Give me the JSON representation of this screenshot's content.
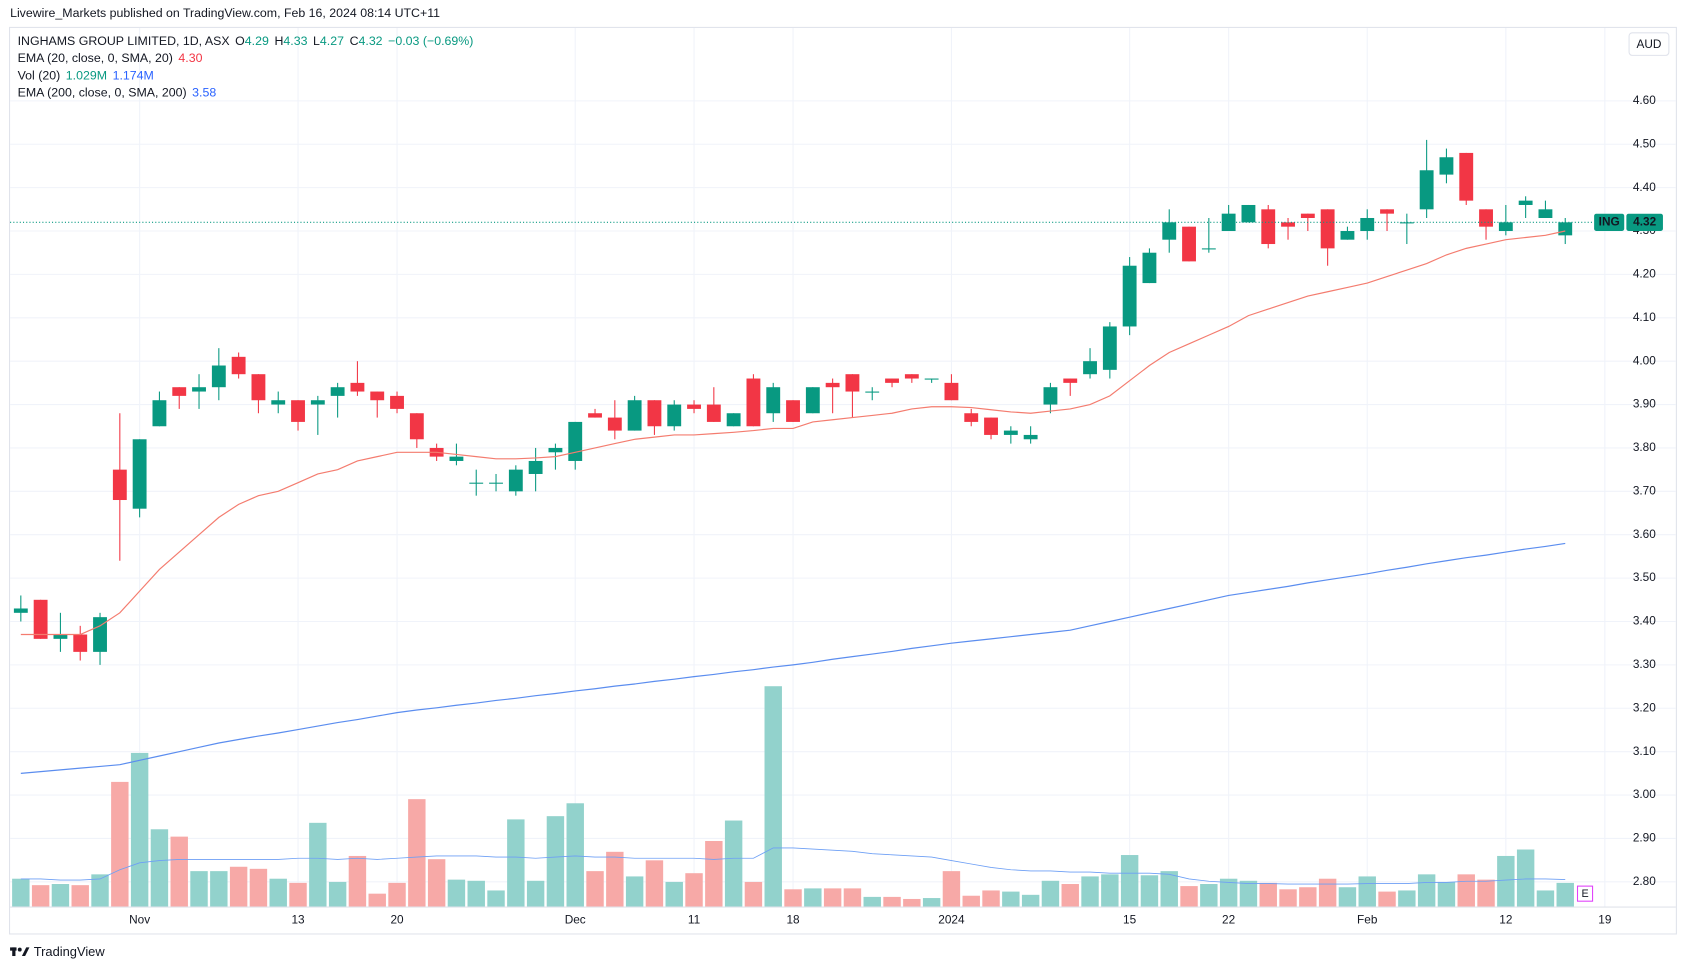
{
  "header": {
    "text": "Livewire_Markets published on TradingView.com, Feb 16, 2024 08:14 UTC+11"
  },
  "footer": {
    "brand": "TradingView"
  },
  "chart_data": {
    "type": "candlestick",
    "legend": {
      "symbol": "INGHAMS GROUP LIMITED, 1D, ASX",
      "ohlc_labels": [
        "O",
        "H",
        "L",
        "C"
      ],
      "change": "−0.03 (−0.69%)"
    },
    "currency": "AUD",
    "symbol_tag": "ING",
    "earnings_marker": "E",
    "up_color": "#089981",
    "down_color": "#f23645",
    "grid": true,
    "xlim": [
      -0.543,
      79.35
    ],
    "xticks": [
      {
        "value": 6,
        "label": "Nov"
      },
      {
        "value": 14,
        "label": "13"
      },
      {
        "value": 19,
        "label": "20"
      },
      {
        "value": 28,
        "label": "Dec"
      },
      {
        "value": 34,
        "label": "11"
      },
      {
        "value": 39,
        "label": "18"
      },
      {
        "value": 47,
        "label": "2024"
      },
      {
        "value": 56,
        "label": "15"
      },
      {
        "value": 61,
        "label": "22"
      },
      {
        "value": 68,
        "label": "Feb"
      },
      {
        "value": 75,
        "label": "12"
      },
      {
        "value": 80,
        "label": "19"
      }
    ],
    "ylim": [
      2.743,
      4.768
    ],
    "yticks": [
      {
        "value": 2.8,
        "label": "2.80"
      },
      {
        "value": 2.9,
        "label": "2.90"
      },
      {
        "value": 3.0,
        "label": "3.00"
      },
      {
        "value": 3.1,
        "label": "3.10"
      },
      {
        "value": 3.2,
        "label": "3.20"
      },
      {
        "value": 3.3,
        "label": "3.30"
      },
      {
        "value": 3.4,
        "label": "3.40"
      },
      {
        "value": 3.5,
        "label": "3.50"
      },
      {
        "value": 3.6,
        "label": "3.60"
      },
      {
        "value": 3.7,
        "label": "3.70"
      },
      {
        "value": 3.8,
        "label": "3.80"
      },
      {
        "value": 3.9,
        "label": "3.90"
      },
      {
        "value": 4.0,
        "label": "4.00"
      },
      {
        "value": 4.1,
        "label": "4.10"
      },
      {
        "value": 4.2,
        "label": "4.20"
      },
      {
        "value": 4.3,
        "label": "4.30"
      },
      {
        "value": 4.4,
        "label": "4.40"
      },
      {
        "value": 4.5,
        "label": "4.50"
      },
      {
        "value": 4.6,
        "label": "4.60"
      }
    ],
    "open": [
      3.42,
      3.45,
      3.36,
      3.37,
      3.33,
      3.75,
      3.66,
      3.85,
      3.94,
      3.93,
      3.94,
      4.01,
      3.97,
      3.9,
      3.91,
      3.9,
      3.92,
      3.95,
      3.93,
      3.92,
      3.88,
      3.8,
      3.77,
      3.72,
      3.72,
      3.7,
      3.74,
      3.79,
      3.77,
      3.88,
      3.87,
      3.84,
      3.91,
      3.85,
      3.9,
      3.9,
      3.85,
      3.96,
      3.88,
      3.91,
      3.88,
      3.95,
      3.97,
      3.93,
      3.96,
      3.97,
      3.96,
      3.95,
      3.88,
      3.87,
      3.83,
      3.82,
      3.9,
      3.96,
      3.97,
      3.98,
      4.08,
      4.18,
      4.28,
      4.31,
      4.26,
      4.3,
      4.32,
      4.35,
      4.32,
      4.34,
      4.35,
      4.28,
      4.3,
      4.35,
      4.32,
      4.35,
      4.43,
      4.48,
      4.35,
      4.3,
      4.36,
      4.33,
      4.29
    ],
    "high": [
      3.46,
      3.45,
      3.42,
      3.39,
      3.42,
      3.88,
      3.82,
      3.93,
      3.94,
      3.97,
      4.03,
      4.02,
      3.97,
      3.93,
      3.91,
      3.92,
      3.95,
      4.0,
      3.93,
      3.93,
      3.88,
      3.81,
      3.81,
      3.75,
      3.74,
      3.76,
      3.8,
      3.81,
      3.86,
      3.89,
      3.91,
      3.92,
      3.91,
      3.91,
      3.91,
      3.94,
      3.88,
      3.97,
      3.95,
      3.91,
      3.94,
      3.96,
      3.97,
      3.94,
      3.96,
      3.97,
      3.96,
      3.97,
      3.89,
      3.87,
      3.85,
      3.85,
      3.95,
      3.96,
      4.03,
      4.09,
      4.24,
      4.26,
      4.35,
      4.31,
      4.33,
      4.36,
      4.36,
      4.36,
      4.33,
      4.34,
      4.35,
      4.31,
      4.35,
      4.35,
      4.34,
      4.51,
      4.49,
      4.48,
      4.35,
      4.36,
      4.38,
      4.37,
      4.33
    ],
    "low": [
      3.4,
      3.36,
      3.33,
      3.31,
      3.3,
      3.54,
      3.64,
      3.85,
      3.89,
      3.89,
      3.91,
      3.96,
      3.88,
      3.88,
      3.84,
      3.83,
      3.87,
      3.92,
      3.87,
      3.88,
      3.8,
      3.77,
      3.76,
      3.69,
      3.7,
      3.69,
      3.7,
      3.75,
      3.75,
      3.87,
      3.82,
      3.84,
      3.83,
      3.84,
      3.88,
      3.86,
      3.85,
      3.85,
      3.86,
      3.86,
      3.88,
      3.88,
      3.87,
      3.91,
      3.94,
      3.95,
      3.95,
      3.91,
      3.85,
      3.82,
      3.81,
      3.81,
      3.88,
      3.92,
      3.96,
      3.96,
      4.06,
      4.18,
      4.25,
      4.23,
      4.25,
      4.3,
      4.32,
      4.26,
      4.28,
      4.3,
      4.22,
      4.28,
      4.28,
      4.3,
      4.27,
      4.33,
      4.41,
      4.36,
      4.28,
      4.29,
      4.33,
      4.33,
      4.27
    ],
    "close": [
      3.43,
      3.36,
      3.37,
      3.33,
      3.41,
      3.68,
      3.82,
      3.91,
      3.92,
      3.94,
      3.99,
      3.97,
      3.91,
      3.91,
      3.86,
      3.91,
      3.94,
      3.93,
      3.91,
      3.89,
      3.82,
      3.78,
      3.78,
      3.72,
      3.72,
      3.75,
      3.77,
      3.8,
      3.86,
      3.87,
      3.84,
      3.91,
      3.85,
      3.9,
      3.89,
      3.86,
      3.88,
      3.85,
      3.94,
      3.86,
      3.94,
      3.94,
      3.93,
      3.93,
      3.95,
      3.96,
      3.96,
      3.91,
      3.86,
      3.83,
      3.84,
      3.83,
      3.94,
      3.95,
      4.0,
      4.08,
      4.22,
      4.25,
      4.32,
      4.23,
      4.26,
      4.34,
      4.36,
      4.27,
      4.31,
      4.33,
      4.26,
      4.3,
      4.33,
      4.34,
      4.32,
      4.44,
      4.47,
      4.37,
      4.31,
      4.32,
      4.37,
      4.35,
      4.32
    ],
    "ema20": {
      "name": "EMA (20, close, 0, SMA, 20)",
      "color": "#f47c6f",
      "value_label": "4.30",
      "values": [
        3.37,
        3.37,
        3.37,
        3.37,
        3.39,
        3.42,
        3.47,
        3.52,
        3.56,
        3.6,
        3.64,
        3.67,
        3.69,
        3.7,
        3.72,
        3.74,
        3.75,
        3.77,
        3.78,
        3.79,
        3.79,
        3.79,
        3.785,
        3.78,
        3.775,
        3.775,
        3.777,
        3.78,
        3.79,
        3.8,
        3.81,
        3.82,
        3.825,
        3.83,
        3.83,
        3.833,
        3.836,
        3.84,
        3.845,
        3.845,
        3.86,
        3.865,
        3.87,
        3.875,
        3.88,
        3.89,
        3.895,
        3.895,
        3.893,
        3.888,
        3.883,
        3.88,
        3.885,
        3.89,
        3.9,
        3.92,
        3.955,
        3.99,
        4.02,
        4.04,
        4.06,
        4.08,
        4.105,
        4.12,
        4.135,
        4.15,
        4.16,
        4.17,
        4.18,
        4.195,
        4.21,
        4.225,
        4.245,
        4.26,
        4.27,
        4.28,
        4.285,
        4.29,
        4.3
      ]
    },
    "ema200": {
      "name": "EMA (200, close, 0, SMA, 200)",
      "color": "#5b8def",
      "values": [
        3.05,
        3.054,
        3.058,
        3.062,
        3.066,
        3.07,
        3.08,
        3.09,
        3.1,
        3.11,
        3.12,
        3.128,
        3.136,
        3.143,
        3.151,
        3.159,
        3.167,
        3.174,
        3.182,
        3.19,
        3.196,
        3.201,
        3.207,
        3.212,
        3.218,
        3.223,
        3.229,
        3.234,
        3.24,
        3.245,
        3.251,
        3.256,
        3.262,
        3.267,
        3.273,
        3.278,
        3.284,
        3.289,
        3.295,
        3.3,
        3.306,
        3.313,
        3.319,
        3.325,
        3.331,
        3.338,
        3.344,
        3.35,
        3.355,
        3.36,
        3.365,
        3.37,
        3.375,
        3.38,
        3.39,
        3.4,
        3.41,
        3.42,
        3.43,
        3.44,
        3.45,
        3.46,
        3.467,
        3.474,
        3.481,
        3.489,
        3.496,
        3.503,
        3.51,
        3.518,
        3.525,
        3.533,
        3.54,
        3.547,
        3.553,
        3.56,
        3.567,
        3.573,
        3.58
      ]
    },
    "volume": {
      "name": "Vol (20)",
      "up_color": "#92d2cc",
      "down_color": "#f7a9a7",
      "ma_color": "#6d9ff5",
      "value_label": "1.029M",
      "ma_label": "1.174M",
      "ylim": [
        0,
        38.2
      ],
      "values": [
        1.21,
        0.93,
        0.98,
        0.93,
        1.4,
        5.42,
        6.68,
        3.36,
        3.04,
        1.54,
        1.54,
        1.73,
        1.64,
        1.21,
        1.03,
        3.64,
        1.07,
        2.2,
        0.56,
        1.03,
        4.67,
        2.06,
        1.17,
        1.12,
        0.7,
        3.79,
        1.12,
        3.93,
        4.49,
        1.54,
        2.38,
        1.31,
        2.01,
        1.07,
        1.45,
        2.85,
        3.74,
        1.07,
        9.58,
        0.75,
        0.79,
        0.79,
        0.79,
        0.42,
        0.42,
        0.33,
        0.37,
        1.54,
        0.47,
        0.7,
        0.65,
        0.51,
        1.12,
        0.98,
        1.31,
        1.4,
        2.24,
        1.36,
        1.54,
        0.89,
        0.98,
        1.21,
        1.12,
        1.03,
        0.75,
        0.84,
        1.21,
        0.84,
        1.31,
        0.65,
        0.7,
        1.4,
        1.07,
        1.4,
        1.17,
        2.2,
        2.48,
        0.7,
        1.029
      ],
      "ma_values": [
        1.2,
        1.2,
        1.15,
        1.15,
        1.2,
        1.6,
        1.9,
        2.0,
        2.05,
        2.05,
        2.05,
        2.05,
        2.05,
        2.05,
        2.1,
        2.1,
        2.05,
        2.1,
        2.05,
        2.1,
        2.15,
        2.2,
        2.2,
        2.2,
        2.15,
        2.15,
        2.1,
        2.15,
        2.2,
        2.15,
        2.15,
        2.1,
        2.1,
        2.1,
        2.1,
        2.05,
        2.1,
        2.1,
        2.55,
        2.55,
        2.5,
        2.45,
        2.4,
        2.3,
        2.25,
        2.2,
        2.15,
        2.0,
        1.85,
        1.7,
        1.6,
        1.55,
        1.55,
        1.5,
        1.5,
        1.45,
        1.45,
        1.45,
        1.4,
        1.2,
        1.1,
        1.05,
        1.0,
        1.0,
        0.98,
        0.98,
        0.98,
        0.98,
        1.0,
        1.0,
        1.0,
        1.05,
        1.05,
        1.1,
        1.1,
        1.15,
        1.2,
        1.2,
        1.174
      ]
    }
  }
}
